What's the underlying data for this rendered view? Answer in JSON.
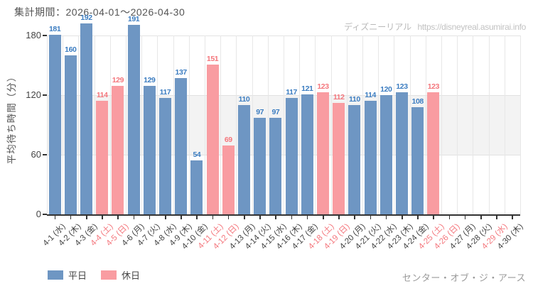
{
  "watermark": {
    "brand": "ディズニーリアル",
    "url": "https://disneyreal.asumirai.info"
  },
  "footer": {
    "attraction": "センター・オブ・ジ・アース"
  },
  "colors": {
    "weekday_bar": "#6e96c3",
    "holiday_bar": "#f99ca1",
    "weekday_value": "#3c7dc1",
    "holiday_value": "#f4767c",
    "weekday_tick_label": "#444444",
    "holiday_tick_label": "#f4767c",
    "band": "#f3f3f3",
    "grid": "#e2e2e2",
    "axis": "#333333",
    "title_text": "#555555",
    "watermark_text": "#b8b8b8",
    "footer_text": "#9a9a9a"
  },
  "chart_data": {
    "type": "bar",
    "title": "集計期間：2026-04-01～2026-04-30",
    "ylabel": "平均待ち時間（分）",
    "xlabel": "",
    "ylim": [
      0,
      195
    ],
    "yticks": [
      0,
      60,
      120,
      180
    ],
    "grid": "horizontal and vertical light gray, gray band between 60 and 120",
    "legend_position": "bottom-left",
    "categories": [
      "4-1 (水)",
      "4-2 (木)",
      "4-3 (金)",
      "4-4 (土)",
      "4-5 (日)",
      "4-6 (月)",
      "4-7 (火)",
      "4-8 (水)",
      "4-9 (木)",
      "4-10 (金)",
      "4-11 (土)",
      "4-12 (日)",
      "4-13 (月)",
      "4-14 (火)",
      "4-15 (水)",
      "4-16 (木)",
      "4-17 (金)",
      "4-18 (土)",
      "4-19 (日)",
      "4-20 (月)",
      "4-21 (火)",
      "4-22 (水)",
      "4-23 (木)",
      "4-24 (金)",
      "4-25 (土)",
      "4-26 (日)",
      "4-27 (月)",
      "4-28 (火)",
      "4-29 (水)",
      "4-30 (木)"
    ],
    "values": [
      181,
      160,
      192,
      114,
      129,
      191,
      129,
      117,
      137,
      54,
      151,
      69,
      110,
      97,
      97,
      117,
      121,
      123,
      112,
      110,
      114,
      120,
      123,
      108,
      123,
      null,
      null,
      null,
      null,
      null
    ],
    "day_types": [
      "weekday",
      "weekday",
      "weekday",
      "holiday",
      "holiday",
      "weekday",
      "weekday",
      "weekday",
      "weekday",
      "weekday",
      "holiday",
      "holiday",
      "weekday",
      "weekday",
      "weekday",
      "weekday",
      "weekday",
      "holiday",
      "holiday",
      "weekday",
      "weekday",
      "weekday",
      "weekday",
      "weekday",
      "holiday",
      "holiday",
      "weekday",
      "weekday",
      "holiday",
      "weekday"
    ],
    "legend": [
      {
        "label": "平日",
        "type": "weekday"
      },
      {
        "label": "休日",
        "type": "holiday"
      }
    ]
  }
}
